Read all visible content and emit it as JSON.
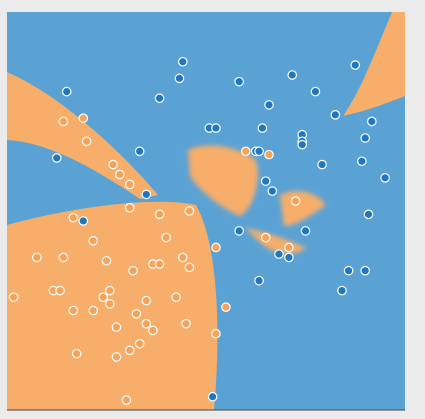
{
  "chart_data": {
    "type": "scatter",
    "xlim": [
      -6,
      6
    ],
    "ylim": [
      -6,
      6
    ],
    "series": [
      {
        "color": "#1f77c2",
        "x": [
          -0.7,
          -0.8,
          1.0,
          2.6,
          4.5,
          -4.2,
          -1.4,
          3.3,
          1.9,
          3.9,
          5.0,
          1.7,
          0.1,
          0.3,
          2.9,
          2.9,
          2.9,
          4.8,
          -4.5,
          -2.0,
          1.5,
          1.6,
          3.5,
          4.7,
          5.4,
          1.8,
          2.0,
          -1.8,
          -3.7,
          4.9,
          1.0,
          3.0,
          2.2,
          2.5,
          4.3,
          4.8,
          1.6,
          4.1,
          0.2
        ],
        "values": [
          4.5,
          4.0,
          3.9,
          4.1,
          4.4,
          3.6,
          3.4,
          3.6,
          3.2,
          2.9,
          2.7,
          2.5,
          2.5,
          2.5,
          2.3,
          2.1,
          2.0,
          2.2,
          1.6,
          1.8,
          1.8,
          1.8,
          1.4,
          1.5,
          1.0,
          0.9,
          0.6,
          0.5,
          -0.3,
          -0.1,
          -0.6,
          -0.6,
          -1.3,
          -1.4,
          -1.8,
          -1.8,
          -2.1,
          -2.4,
          -5.6
        ]
      },
      {
        "color": "#f5a25a",
        "x": [
          -4.3,
          -3.7,
          -3.6,
          -2.8,
          -2.6,
          -2.3,
          1.2,
          1.9,
          2.7,
          -4.0,
          -2.3,
          -1.4,
          -0.5,
          -1.2,
          -3.4,
          1.8,
          2.5,
          0.3,
          -5.1,
          -4.3,
          -3.0,
          -1.6,
          -1.4,
          -0.7,
          -0.5,
          -2.2,
          -5.8,
          -4.6,
          -4.4,
          -2.9,
          -3.1,
          -2.9,
          -1.8,
          -0.9,
          0.6,
          -4.0,
          -3.4,
          -2.1,
          -0.6,
          -2.7,
          -1.8,
          -1.6,
          0.3,
          -2.0,
          -3.9,
          -2.3,
          -2.7,
          -2.4
        ],
        "values": [
          2.7,
          2.8,
          2.1,
          1.4,
          1.1,
          0.8,
          1.8,
          1.7,
          0.3,
          -0.2,
          0.1,
          -0.1,
          0.0,
          -0.8,
          -0.9,
          -0.8,
          -1.1,
          -1.1,
          -1.4,
          -1.4,
          -1.5,
          -1.6,
          -1.6,
          -1.4,
          -1.7,
          -1.8,
          -2.6,
          -2.4,
          -2.4,
          -2.4,
          -2.6,
          -2.8,
          -2.7,
          -2.6,
          -2.9,
          -3.0,
          -3.0,
          -3.1,
          -3.4,
          -3.5,
          -3.4,
          -3.6,
          -3.7,
          -4.0,
          -4.3,
          -4.2,
          -4.4,
          -5.7
        ]
      }
    ]
  }
}
